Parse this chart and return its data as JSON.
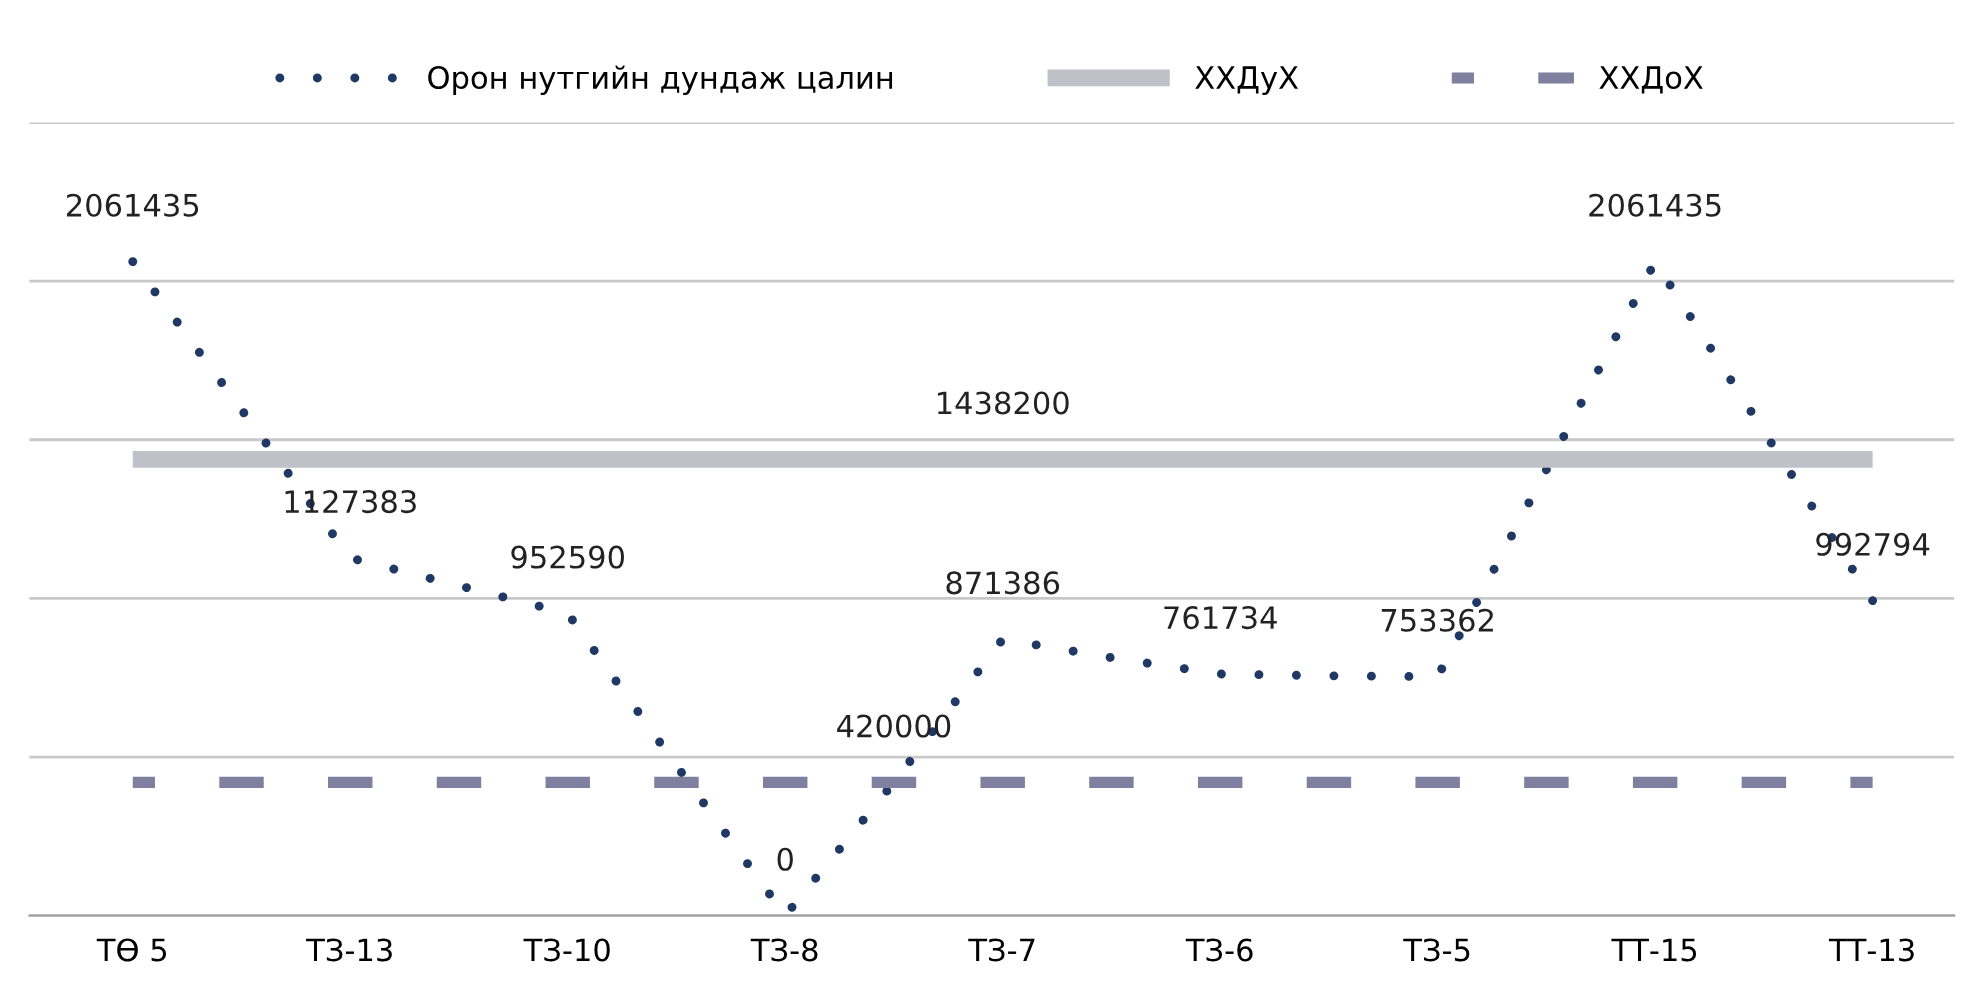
{
  "chart_data": {
    "type": "line",
    "categories": [
      "ТӨ 5",
      null,
      "ТЗ-13",
      null,
      "ТЗ-10",
      null,
      "ТЗ-8",
      null,
      "ТЗ-7",
      null,
      "ТЗ-6",
      null,
      "ТЗ-5",
      null,
      "ТТ-15",
      null,
      "ТТ-13"
    ],
    "series": [
      {
        "name": "Орон нутгийн дундаж цалин",
        "color": "#1f3864",
        "line_style": "dotted",
        "values": [
          2061435,
          1595000,
          1127383,
          1040000,
          952590,
          473000,
          0,
          420000,
          871386,
          813000,
          761734,
          756000,
          753362,
          1406000,
          2061435,
          1526000,
          992794
        ],
        "value_labels": [
          "2061435",
          null,
          "1127383",
          null,
          "952590",
          null,
          "0",
          "420000",
          "871386",
          null,
          "761734",
          null,
          "753362",
          null,
          "2061435",
          null,
          "992794"
        ]
      },
      {
        "name": "ХХДуХ",
        "color": "#c0c0c8",
        "line_style": "solid",
        "values": [
          1438200,
          1438200,
          1438200,
          1438200,
          1438200,
          1438200,
          1438200,
          1438200,
          1438200,
          1438200,
          1438200,
          1438200,
          1438200,
          1438200,
          1438200,
          1438200,
          1438200
        ],
        "value_labels": [
          null,
          null,
          null,
          null,
          null,
          null,
          null,
          null,
          "1438200",
          null,
          null,
          null,
          null,
          null,
          null,
          null,
          null
        ]
      },
      {
        "name": "ХХДоХ",
        "color": "#7f7f9f",
        "line_style": "dashed",
        "values": [
          420000,
          420000,
          420000,
          420000,
          420000,
          420000,
          420000,
          420000,
          420000,
          420000,
          420000,
          420000,
          420000,
          420000,
          420000,
          420000,
          420000
        ]
      }
    ],
    "ylim": [
      0,
      2500000
    ],
    "yticks": [
      {
        "value": 0,
        "label": null
      },
      {
        "value": 500000,
        "label": null
      },
      {
        "value": 1000000,
        "label": null
      },
      {
        "value": 1500000,
        "label": null
      },
      {
        "value": 2000000,
        "label": null
      },
      {
        "value": 2500000,
        "label": null
      }
    ],
    "tick_labels": "x",
    "grid": "y",
    "legend": "top",
    "marker": "none"
  }
}
